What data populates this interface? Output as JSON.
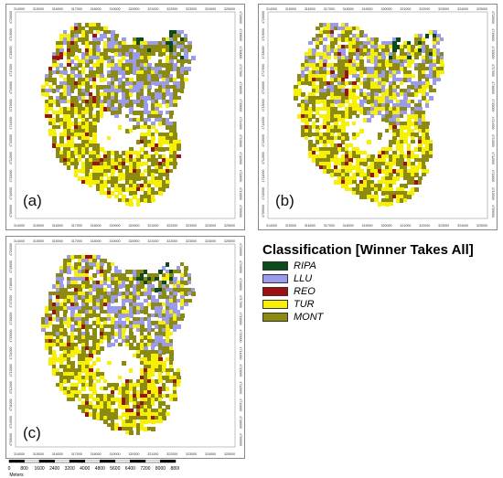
{
  "panels": [
    {
      "id": "a",
      "label": "(a)",
      "x_ticks": [
        "314000",
        "315000",
        "316000",
        "317000",
        "318000",
        "319000",
        "320000",
        "321000",
        "322000",
        "323000",
        "324000",
        "325000"
      ],
      "y_ticks": [
        "4720000",
        "4719000",
        "4718000",
        "4717000",
        "4716000",
        "4715000",
        "4714000",
        "4713000",
        "4712000",
        "4711000",
        "4710000",
        "4709000"
      ]
    },
    {
      "id": "b",
      "label": "(b)",
      "x_ticks": [
        "314000",
        "315000",
        "316000",
        "317000",
        "318000",
        "319000",
        "320000",
        "321000",
        "322000",
        "323000",
        "324000",
        "325000"
      ],
      "y_ticks": [
        "4720000",
        "4719000",
        "4718000",
        "4717000",
        "4716000",
        "4715000",
        "4714000",
        "4713000",
        "4712000",
        "4711000",
        "4710000",
        "4709000"
      ]
    },
    {
      "id": "c",
      "label": "(c)",
      "x_ticks": [
        "314000",
        "315000",
        "316000",
        "317000",
        "318000",
        "319000",
        "320000",
        "321000",
        "322000",
        "323000",
        "324000",
        "325000"
      ],
      "y_ticks": [
        "4720000",
        "4719000",
        "4718000",
        "4717000",
        "4716000",
        "4715000",
        "4714000",
        "4713000",
        "4712000",
        "4711000",
        "4710000",
        "4709000"
      ]
    }
  ],
  "legend": {
    "title": "Classification [Winner Takes All]",
    "items": [
      {
        "label": "RIPA",
        "color": "#0b4a1a"
      },
      {
        "label": "LLU",
        "color": "#9a9af0"
      },
      {
        "label": "REO",
        "color": "#a01010"
      },
      {
        "label": "TUR",
        "color": "#f7f000"
      },
      {
        "label": "MONT",
        "color": "#8c8a10"
      }
    ]
  },
  "scalebar": {
    "ticks": [
      "0",
      "800",
      "1600",
      "2400",
      "3200",
      "4000",
      "4800",
      "5600",
      "6400",
      "7200",
      "8000",
      "8800"
    ],
    "unit": "Meters"
  }
}
